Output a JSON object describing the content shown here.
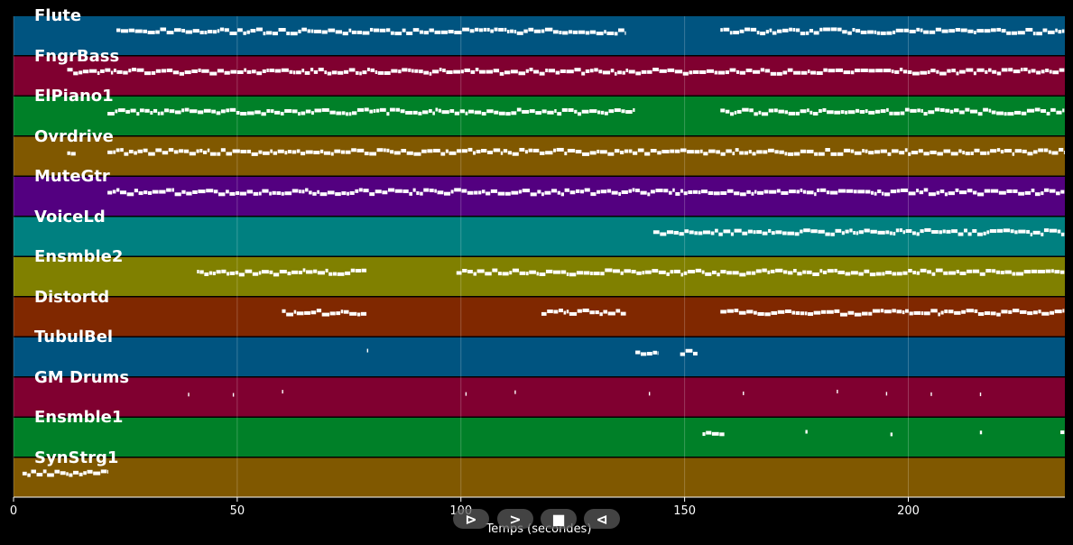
{
  "chart_data": {
    "type": "piano-roll",
    "xlabel": "Temps (secondes)",
    "xlim": [
      0,
      235
    ],
    "xticks": [
      0,
      50,
      100,
      150,
      200
    ],
    "grid": true,
    "tracks": [
      {
        "name": "Flute",
        "color": "#005480",
        "segments": [
          [
            23,
            137
          ],
          [
            158,
            235
          ]
        ]
      },
      {
        "name": "FngrBass",
        "color": "#800030",
        "segments": [
          [
            12,
            235
          ]
        ]
      },
      {
        "name": "ElPiano1",
        "color": "#008028",
        "segments": [
          [
            21,
            139
          ],
          [
            158,
            235
          ]
        ]
      },
      {
        "name": "Ovrdrive",
        "color": "#805800",
        "segments": [
          [
            12,
            14
          ],
          [
            21,
            235
          ]
        ]
      },
      {
        "name": "MuteGtr",
        "color": "#530080",
        "segments": [
          [
            21,
            235
          ]
        ]
      },
      {
        "name": "VoiceLd",
        "color": "#008080",
        "segments": [
          [
            143,
            235
          ]
        ]
      },
      {
        "name": "Ensmble2",
        "color": "#808000",
        "segments": [
          [
            41,
            79
          ],
          [
            99,
            235
          ]
        ]
      },
      {
        "name": "Distortd",
        "color": "#802800",
        "segments": [
          [
            60,
            79
          ],
          [
            118,
            137
          ],
          [
            158,
            235
          ]
        ]
      },
      {
        "name": "TubulBel",
        "color": "#005480",
        "segments": [
          [
            79,
            79.3
          ],
          [
            139,
            144
          ],
          [
            149,
            153
          ]
        ]
      },
      {
        "name": "GM Drums",
        "color": "#800030",
        "segments": [
          [
            39,
            39.3
          ],
          [
            49,
            49.3
          ],
          [
            60,
            60.3
          ],
          [
            101,
            101.3
          ],
          [
            112,
            112.3
          ],
          [
            142,
            142.3
          ],
          [
            163,
            163.3
          ],
          [
            184,
            184.3
          ],
          [
            195,
            195.3
          ],
          [
            205,
            205.3
          ],
          [
            216,
            216.3
          ]
        ]
      },
      {
        "name": "Ensmble1",
        "color": "#008028",
        "segments": [
          [
            154,
            159
          ],
          [
            177,
            177.6
          ],
          [
            196,
            196.6
          ],
          [
            216,
            216.6
          ],
          [
            234,
            235
          ]
        ]
      },
      {
        "name": "SynStrg1",
        "color": "#805800",
        "segments": [
          [
            2,
            21
          ]
        ]
      }
    ]
  },
  "controls": [
    {
      "name": "play-button",
      "glyph": "⊳"
    },
    {
      "name": "forward-button",
      "glyph": ">"
    },
    {
      "name": "stop-button",
      "glyph": "■"
    },
    {
      "name": "rewind-button",
      "glyph": "⊲"
    }
  ]
}
